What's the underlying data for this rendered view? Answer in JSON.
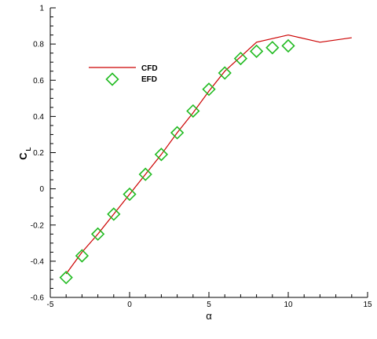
{
  "chart_data": {
    "type": "line",
    "title": "",
    "xlabel": "α",
    "ylabel": "C",
    "ylabel_subscript": "L",
    "xlim": [
      -5,
      15
    ],
    "ylim": [
      -0.6,
      1.0
    ],
    "xticks": [
      -5,
      0,
      5,
      10,
      15
    ],
    "xtick_labels": [
      "-5",
      "0",
      "5",
      "10",
      "15"
    ],
    "yticks": [
      -0.6,
      -0.4,
      -0.2,
      0,
      0.2,
      0.4,
      0.6,
      0.8,
      1.0
    ],
    "ytick_labels": [
      "-0.6",
      "-0.4",
      "-0.2",
      "0",
      "0.2",
      "0.4",
      "0.6",
      "0.8",
      "1"
    ],
    "grid": false,
    "legend_position": "upper-left",
    "series": [
      {
        "name": "CFD",
        "style": "line",
        "color": "#cc0000",
        "x": [
          -4,
          -3,
          -2,
          -1,
          0,
          1,
          2,
          3,
          4,
          5,
          6,
          7,
          8,
          10,
          12,
          14
        ],
        "y": [
          -0.47,
          -0.35,
          -0.25,
          -0.14,
          -0.03,
          0.08,
          0.19,
          0.31,
          0.42,
          0.54,
          0.65,
          0.73,
          0.81,
          0.85,
          0.81,
          0.835
        ]
      },
      {
        "name": "EFD",
        "style": "marker",
        "marker": "diamond",
        "color": "#22bb22",
        "x": [
          -4,
          -3,
          -2,
          -1,
          0,
          1,
          2,
          3,
          4,
          5,
          6,
          7,
          8,
          9,
          10
        ],
        "y": [
          -0.49,
          -0.37,
          -0.25,
          -0.14,
          -0.03,
          0.08,
          0.19,
          0.31,
          0.43,
          0.55,
          0.64,
          0.72,
          0.76,
          0.78,
          0.79
        ]
      }
    ]
  }
}
